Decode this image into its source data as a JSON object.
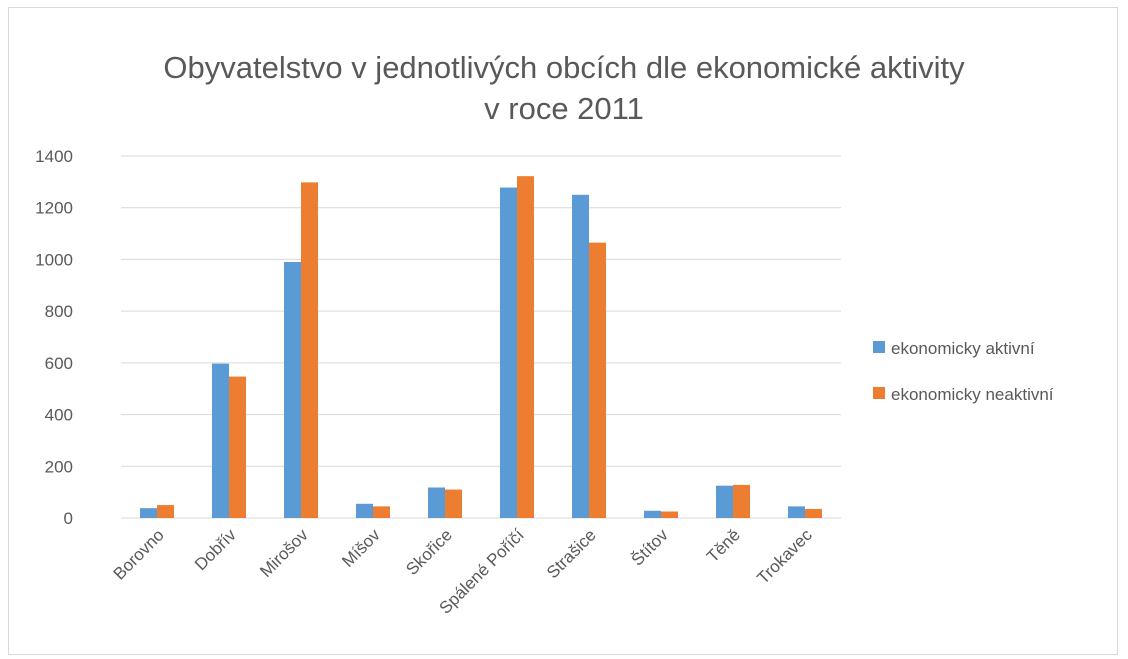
{
  "chart_data": {
    "type": "bar",
    "title": "Obyvatelstvo v jednotlivých obcích dle ekonomické aktivity v roce 2011",
    "title_lines": [
      "Obyvatelstvo v jednotlivých obcích dle ekonomické aktivity",
      "v roce 2011"
    ],
    "categories": [
      "Borovno",
      "Dobřív",
      "Mirošov",
      "Míšov",
      "Skořice",
      "Spálené Poříčí",
      "Strašice",
      "Štítov",
      "Těně",
      "Trokavec"
    ],
    "series": [
      {
        "name": "ekonomicky aktivní",
        "color": "#5b9bd5",
        "values": [
          38,
          597,
          990,
          55,
          118,
          1278,
          1250,
          28,
          125,
          45
        ]
      },
      {
        "name": "ekonomicky neaktivní",
        "color": "#ed7d31",
        "values": [
          50,
          547,
          1298,
          45,
          110,
          1322,
          1065,
          25,
          128,
          35
        ]
      }
    ],
    "ylim": [
      0,
      1400
    ],
    "yticks": [
      0,
      200,
      400,
      600,
      800,
      1000,
      1200,
      1400
    ],
    "grid": true,
    "legend_position": "right"
  }
}
